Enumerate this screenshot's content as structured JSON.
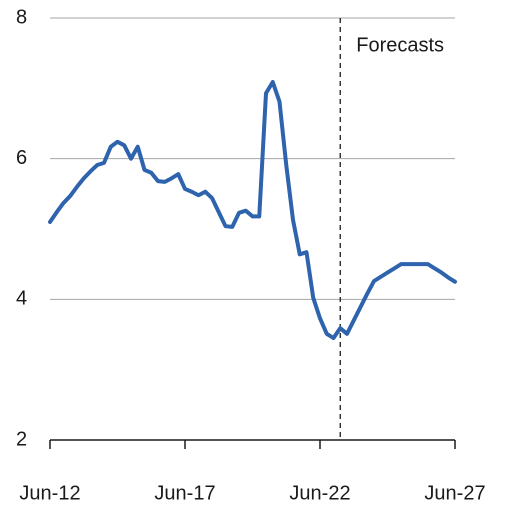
{
  "chart_data": {
    "type": "line",
    "x": [
      "2012-06",
      "2012-09",
      "2012-12",
      "2013-03",
      "2013-06",
      "2013-09",
      "2013-12",
      "2014-03",
      "2014-06",
      "2014-09",
      "2014-12",
      "2015-03",
      "2015-06",
      "2015-09",
      "2015-12",
      "2016-03",
      "2016-06",
      "2016-09",
      "2016-12",
      "2017-03",
      "2017-06",
      "2017-09",
      "2017-12",
      "2018-03",
      "2018-06",
      "2018-09",
      "2018-12",
      "2019-03",
      "2019-06",
      "2019-09",
      "2019-12",
      "2020-03",
      "2020-06",
      "2020-09",
      "2020-12",
      "2021-03",
      "2021-06",
      "2021-09",
      "2021-12",
      "2022-03",
      "2022-06",
      "2022-09",
      "2022-12",
      "2023-03",
      "2023-06",
      "2023-09",
      "2023-12",
      "2024-03",
      "2024-06",
      "2024-09",
      "2024-12",
      "2025-03",
      "2025-06",
      "2025-09",
      "2025-12",
      "2026-03",
      "2026-06",
      "2026-09",
      "2026-12",
      "2027-03",
      "2027-06"
    ],
    "series": [
      {
        "color": "#2e63ad",
        "values": [
          5.1,
          5.24,
          5.37,
          5.47,
          5.6,
          5.72,
          5.82,
          5.91,
          5.94,
          6.17,
          6.24,
          6.19,
          6.0,
          6.17,
          5.84,
          5.8,
          5.68,
          5.67,
          5.72,
          5.78,
          5.57,
          5.53,
          5.48,
          5.53,
          5.44,
          5.24,
          5.04,
          5.03,
          5.23,
          5.26,
          5.18,
          5.18,
          6.93,
          7.09,
          6.81,
          5.91,
          5.13,
          4.64,
          4.67,
          4.02,
          3.73,
          3.51,
          3.45,
          3.59,
          3.51,
          3.7,
          3.89,
          4.08,
          4.26,
          4.32,
          4.38,
          4.44,
          4.5,
          4.5,
          4.5,
          4.5,
          4.5,
          4.44,
          4.38,
          4.31,
          4.25
        ]
      }
    ],
    "xlim": [
      "2012-06",
      "2027-06"
    ],
    "xticks": [
      {
        "value": "2012-06",
        "label": "Jun-12"
      },
      {
        "value": "2017-06",
        "label": "Jun-17"
      },
      {
        "value": "2022-06",
        "label": "Jun-22"
      },
      {
        "value": "2027-06",
        "label": "Jun-27"
      }
    ],
    "ylim": [
      2,
      8
    ],
    "yticks": [
      2,
      4,
      6,
      8
    ],
    "grid": true,
    "annotations": [
      {
        "x": "2023-03",
        "text": "Forecasts"
      }
    ]
  }
}
